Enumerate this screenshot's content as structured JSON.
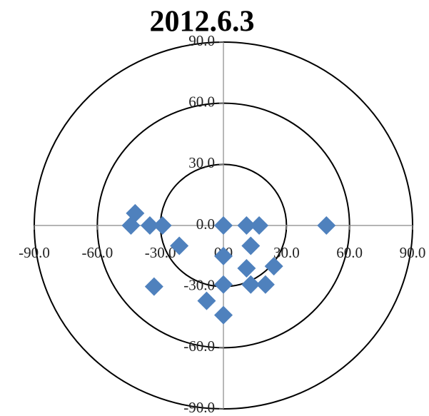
{
  "chart_data": {
    "type": "scatter",
    "title": "2012.6.3",
    "series": [
      {
        "color": "#4f81bd",
        "x": [
          -42,
          -44,
          -35,
          -29,
          -21,
          -33,
          0,
          0,
          0,
          0,
          -8,
          11,
          17,
          13,
          11,
          24,
          13,
          20,
          49
        ],
        "values": [
          6,
          0,
          0,
          0,
          -10,
          -30,
          0,
          -15,
          -29,
          -44,
          -37,
          0,
          0,
          -10,
          -21,
          -20,
          -29,
          -29,
          0
        ]
      }
    ],
    "rings": [
      30,
      60,
      90
    ],
    "xlim": [
      -90,
      90
    ],
    "ylim": [
      -90,
      90
    ],
    "xticks": [
      {
        "value": -90,
        "label": "-90.0"
      },
      {
        "value": -60,
        "label": "-60.0"
      },
      {
        "value": -30,
        "label": "-30.0"
      },
      {
        "value": 0,
        "label": "0.0"
      },
      {
        "value": 30,
        "label": "30.0"
      },
      {
        "value": 60,
        "label": "60.0"
      },
      {
        "value": 90,
        "label": "90.0"
      }
    ],
    "yticks": [
      {
        "value": -90,
        "label": "-90.0"
      },
      {
        "value": -60,
        "label": "-60.0"
      },
      {
        "value": -30,
        "label": "-30.0"
      },
      {
        "value": 0,
        "label": "0.0"
      },
      {
        "value": 30,
        "label": "30.0"
      },
      {
        "value": 60,
        "label": "60.0"
      },
      {
        "value": 90,
        "label": "90.0"
      }
    ]
  }
}
